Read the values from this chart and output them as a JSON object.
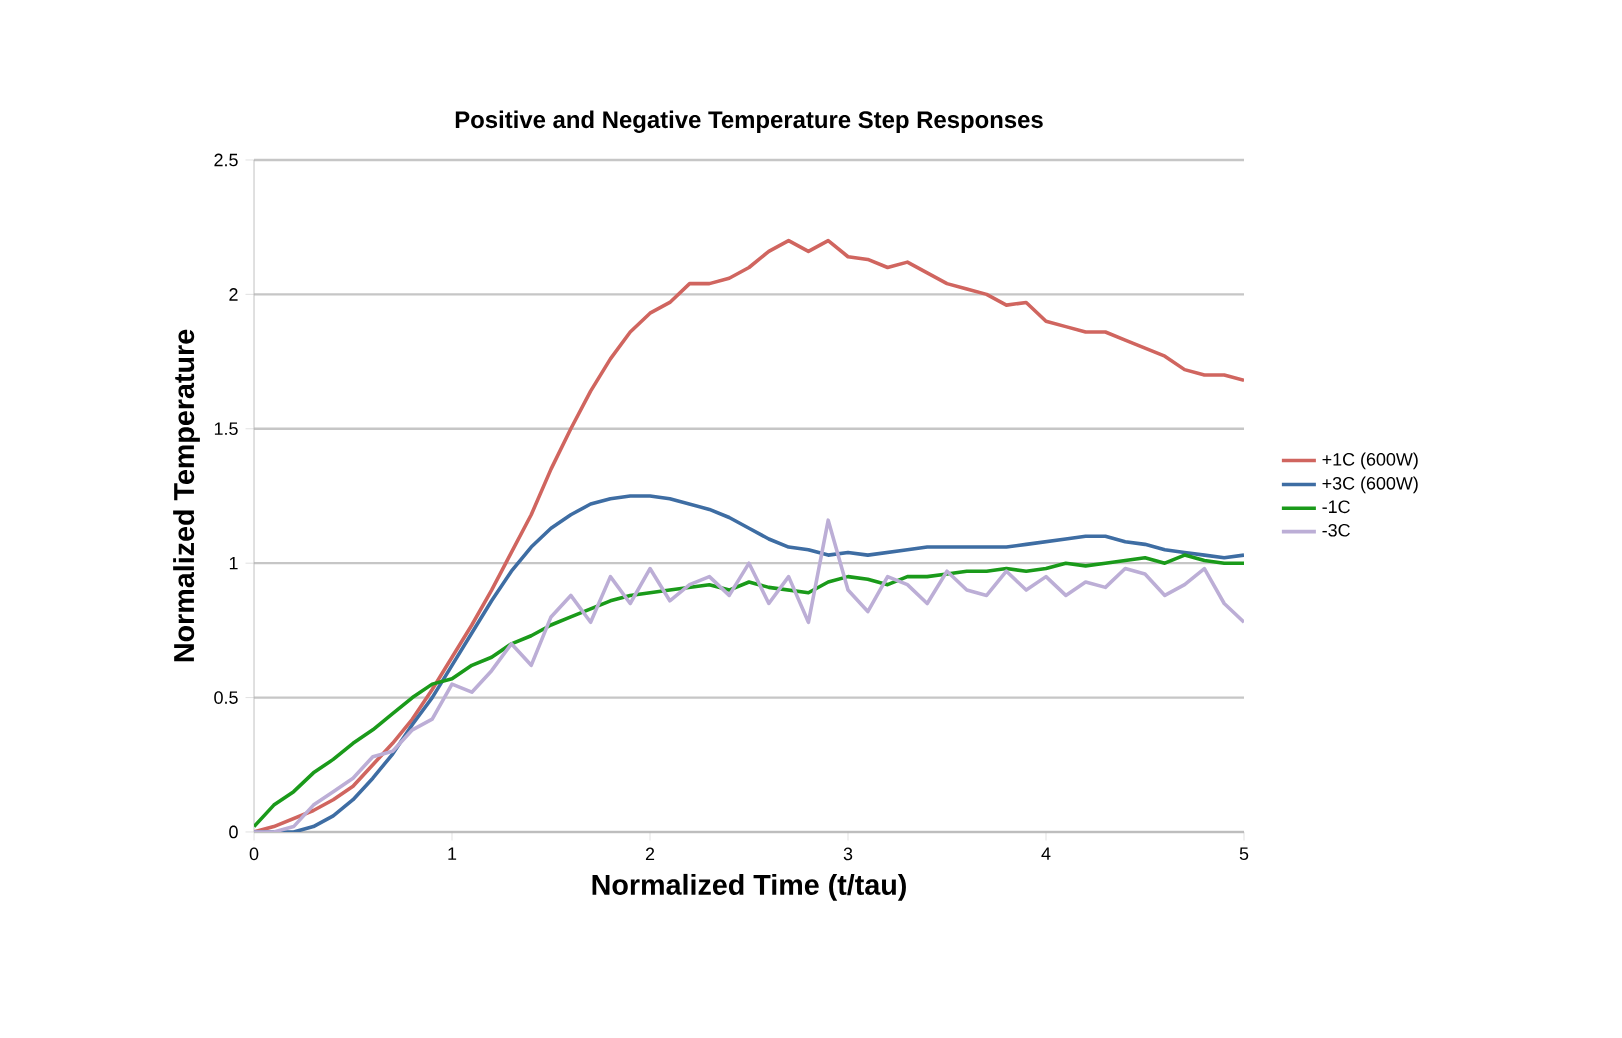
{
  "chart_data": {
    "type": "line",
    "title": "Positive and Negative Temperature Step Responses",
    "xlabel": "Normalized Time (t/tau)",
    "ylabel": "Normalized Temperature",
    "x": [
      0,
      0.1,
      0.2,
      0.3,
      0.4,
      0.5,
      0.6,
      0.7,
      0.8,
      0.9,
      1,
      1.1,
      1.2,
      1.3,
      1.4,
      1.5,
      1.6,
      1.7,
      1.8,
      1.9,
      2,
      2.1,
      2.2,
      2.3,
      2.4,
      2.5,
      2.6,
      2.7,
      2.8,
      2.9,
      3,
      3.1,
      3.2,
      3.3,
      3.4,
      3.5,
      3.6,
      3.7,
      3.8,
      3.9,
      4,
      4.1,
      4.2,
      4.3,
      4.4,
      4.5,
      4.6,
      4.7,
      4.8,
      4.9,
      5
    ],
    "series": [
      {
        "name": "+1C (600W)",
        "color": "#d0655f",
        "values": [
          0,
          0.02,
          0.05,
          0.08,
          0.12,
          0.17,
          0.25,
          0.33,
          0.42,
          0.53,
          0.65,
          0.77,
          0.9,
          1.04,
          1.18,
          1.35,
          1.5,
          1.64,
          1.76,
          1.86,
          1.93,
          1.97,
          2.04,
          2.04,
          2.06,
          2.1,
          2.16,
          2.2,
          2.16,
          2.2,
          2.14,
          2.13,
          2.1,
          2.12,
          2.08,
          2.04,
          2.02,
          2.0,
          1.96,
          1.97,
          1.9,
          1.88,
          1.86,
          1.86,
          1.83,
          1.8,
          1.77,
          1.72,
          1.7,
          1.7,
          1.68
        ]
      },
      {
        "name": "+3C (600W)",
        "color": "#3e6da3",
        "values": [
          0,
          0,
          0,
          0.02,
          0.06,
          0.12,
          0.2,
          0.29,
          0.4,
          0.5,
          0.62,
          0.74,
          0.86,
          0.97,
          1.06,
          1.13,
          1.18,
          1.22,
          1.24,
          1.25,
          1.25,
          1.24,
          1.22,
          1.2,
          1.17,
          1.13,
          1.09,
          1.06,
          1.05,
          1.03,
          1.04,
          1.03,
          1.04,
          1.05,
          1.06,
          1.06,
          1.06,
          1.06,
          1.06,
          1.07,
          1.08,
          1.09,
          1.1,
          1.1,
          1.08,
          1.07,
          1.05,
          1.04,
          1.03,
          1.02,
          1.03
        ]
      },
      {
        "name": "-1C",
        "color": "#1a9a1a",
        "values": [
          0.02,
          0.1,
          0.15,
          0.22,
          0.27,
          0.33,
          0.38,
          0.44,
          0.5,
          0.55,
          0.57,
          0.62,
          0.65,
          0.7,
          0.73,
          0.77,
          0.8,
          0.83,
          0.86,
          0.88,
          0.89,
          0.9,
          0.91,
          0.92,
          0.9,
          0.93,
          0.91,
          0.9,
          0.89,
          0.93,
          0.95,
          0.94,
          0.92,
          0.95,
          0.95,
          0.96,
          0.97,
          0.97,
          0.98,
          0.97,
          0.98,
          1.0,
          0.99,
          1.0,
          1.01,
          1.02,
          1.0,
          1.03,
          1.01,
          1.0,
          1.0
        ]
      },
      {
        "name": "-3C",
        "color": "#bcaed6",
        "values": [
          0,
          0,
          0.02,
          0.1,
          0.15,
          0.2,
          0.28,
          0.3,
          0.38,
          0.42,
          0.55,
          0.52,
          0.6,
          0.7,
          0.62,
          0.8,
          0.88,
          0.78,
          0.95,
          0.85,
          0.98,
          0.86,
          0.92,
          0.95,
          0.88,
          1.0,
          0.85,
          0.95,
          0.78,
          1.16,
          0.9,
          0.82,
          0.95,
          0.92,
          0.85,
          0.97,
          0.9,
          0.88,
          0.97,
          0.9,
          0.95,
          0.88,
          0.93,
          0.91,
          0.98,
          0.96,
          0.88,
          0.92,
          0.98,
          0.85,
          0.78
        ]
      }
    ],
    "xlim": [
      0,
      5
    ],
    "xticks": [
      0,
      1,
      2,
      3,
      4,
      5
    ],
    "ylim": [
      0,
      2.5
    ],
    "yticks": [
      0,
      0.5,
      1,
      1.5,
      2,
      2.5
    ],
    "grid": "y",
    "legend": "right",
    "marker": "none",
    "line_style": "solid"
  }
}
